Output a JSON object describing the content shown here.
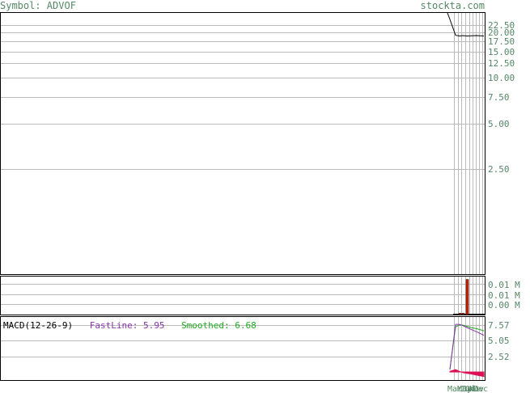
{
  "header": {
    "symbol": "Symbol: ADVOF",
    "site": "stockta.com"
  },
  "price_panel": {
    "tick_labels": [
      "22.50",
      "20.00",
      "17.50",
      "15.00",
      "12.50",
      "10.00",
      "7.50",
      "5.00",
      "2.50"
    ],
    "tick_values": [
      22.5,
      20.0,
      17.5,
      15.0,
      12.5,
      10.0,
      7.5,
      5.0,
      2.5
    ]
  },
  "volume_panel": {
    "tick_labels": [
      "0.01 M",
      "0.01 M",
      "0.00 M"
    ]
  },
  "macd_panel": {
    "label": "MACD(12-26-9)",
    "fast_label": "FastLine: 5.95",
    "smooth_label": "Smoothed: 6.68",
    "tick_labels": [
      "7.57",
      "5.05",
      "2.52"
    ],
    "tick_values": [
      7.57,
      5.05,
      2.52
    ]
  },
  "x_axis": {
    "labels": [
      "Mar",
      "May",
      "Jun",
      "Jul",
      "Oct",
      "Nov",
      "Dec"
    ]
  },
  "colors": {
    "price_line": "#000000",
    "volume_bar": "#dd2200",
    "fast_line": "#8833aa",
    "smooth_line": "#22aa22",
    "histogram": "#dd1155",
    "axis_label": "#558866",
    "grid": "#bbbbbb"
  },
  "chart_data": [
    {
      "type": "line",
      "title": "",
      "series": [
        {
          "values": [
            24.5,
            19.2,
            19.0,
            19.1,
            19.0,
            19.05,
            19.1,
            19.0
          ]
        }
      ],
      "yscale": "log",
      "ylim": [
        0.5,
        27.0
      ],
      "grid": true
    },
    {
      "type": "bar",
      "values": [
        0.0,
        0.0,
        0.0005,
        0.0005,
        0.0135,
        0.0,
        0.0,
        0.0
      ]
    },
    {
      "type": "line",
      "series": [
        {
          "name": "FastLine",
          "values": [
            0.4,
            7.7,
            7.7,
            7.5,
            7.2,
            6.9,
            6.5,
            5.95
          ]
        },
        {
          "name": "Smoothed",
          "values": [
            0.4,
            7.3,
            7.6,
            7.6,
            7.4,
            7.2,
            7.0,
            6.68
          ]
        }
      ],
      "histogram": [
        0.1,
        0.4,
        0.1,
        -0.1,
        -0.2,
        -0.3,
        -0.5,
        -0.73
      ],
      "ylim": [
        -1.3,
        8.9
      ],
      "grid": true
    }
  ]
}
